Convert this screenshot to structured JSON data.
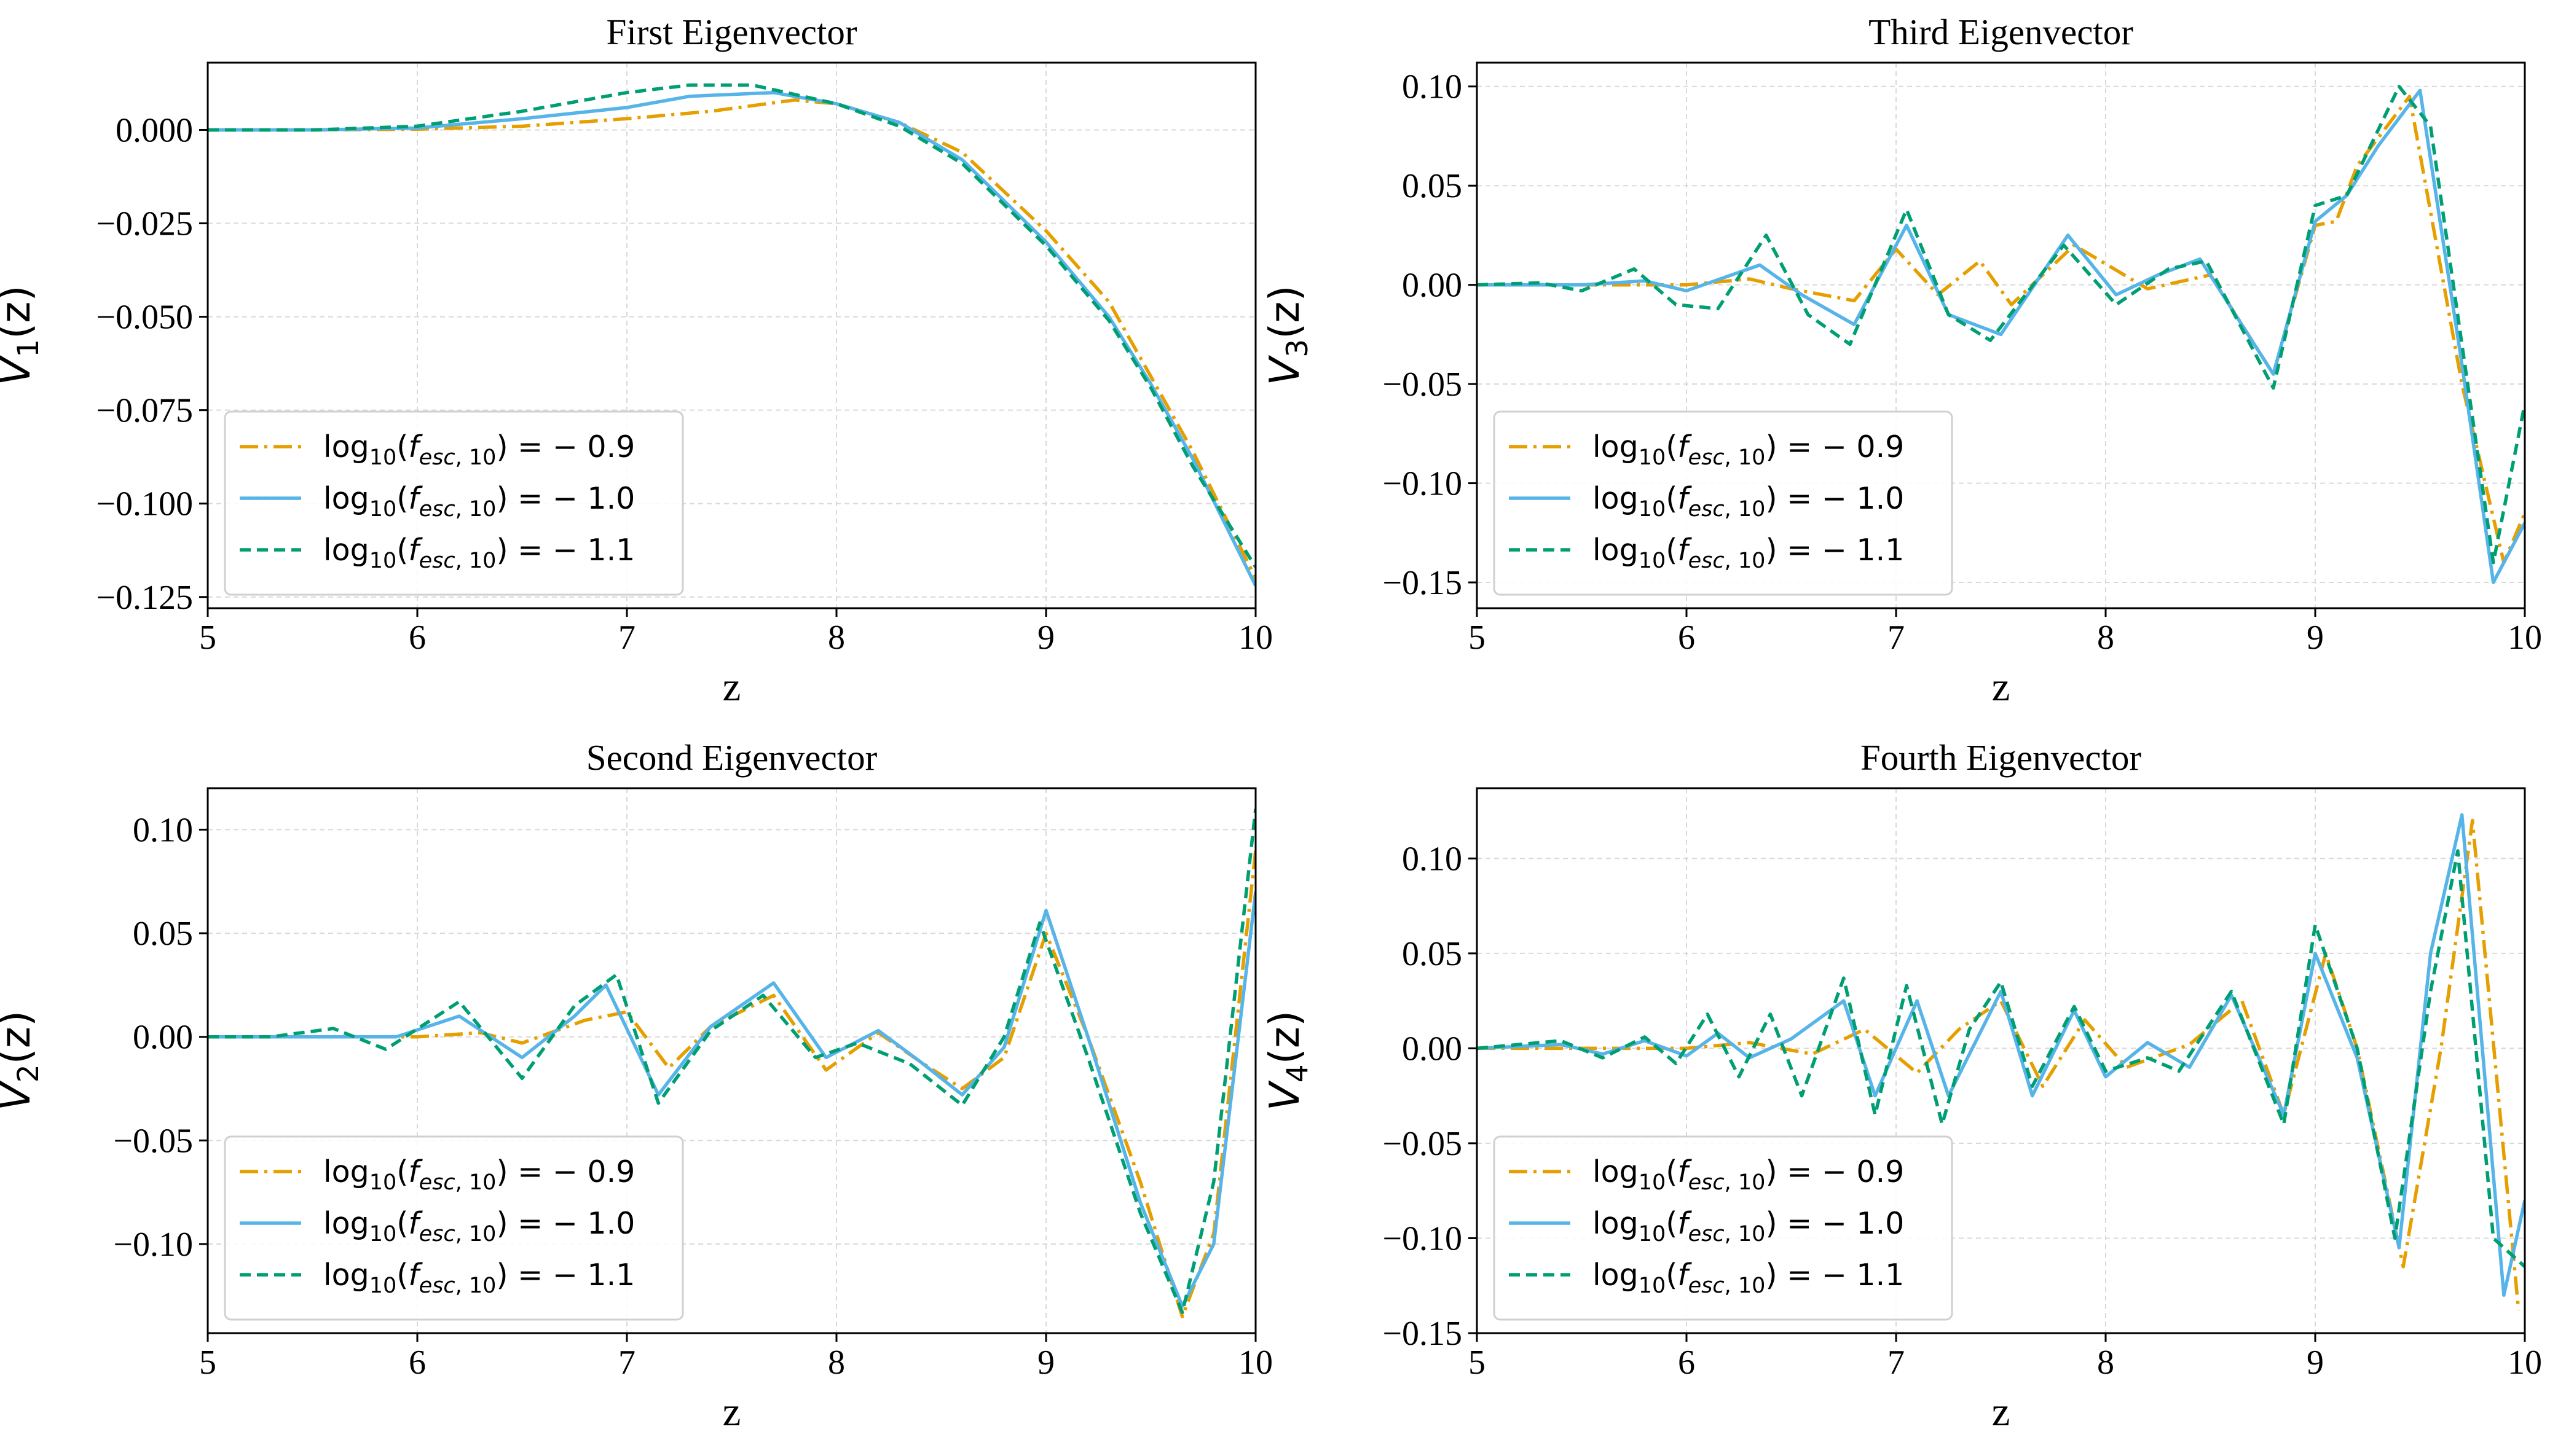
{
  "colors": {
    "s09": "#E69F00",
    "s10": "#56B4E9",
    "s11": "#009E73"
  },
  "legend": [
    {
      "key": "s09",
      "base": "log",
      "subscript": "10",
      "italic": "f",
      "italic_sub": "esc",
      "rest_sub": ", 10",
      "tail": ") = − 0.9",
      "style": "dashdot"
    },
    {
      "key": "s10",
      "base": "log",
      "subscript": "10",
      "italic": "f",
      "italic_sub": "esc",
      "rest_sub": ", 10",
      "tail": ") = − 1.0",
      "style": "solid"
    },
    {
      "key": "s11",
      "base": "log",
      "subscript": "10",
      "italic": "f",
      "italic_sub": "esc",
      "rest_sub": ", 10",
      "tail": ") = − 1.1",
      "style": "dashed"
    }
  ],
  "chart_data": [
    {
      "type": "line",
      "title": "First Eigenvector",
      "xlabel": "z",
      "ylabel": {
        "main": "V",
        "sub": "1",
        "tail": "(z)"
      },
      "xlim": [
        5,
        10
      ],
      "ylim": [
        -0.128,
        0.018
      ],
      "xticks": [
        "5",
        "6",
        "7",
        "8",
        "9",
        "10"
      ],
      "yticks": [
        0.0,
        -0.025,
        -0.05,
        -0.075,
        -0.1,
        -0.125
      ],
      "ytick_labels": [
        "0.000",
        "−0.025",
        "−0.050",
        "−0.075",
        "−0.100",
        "−0.125"
      ],
      "legend_loc": "lower left",
      "series": [
        {
          "name": "log10(f_esc,10) = -0.9",
          "key": "s09",
          "x": [
            5,
            5.5,
            6,
            6.5,
            7,
            7.4,
            7.8,
            8,
            8.3,
            8.6,
            9,
            9.3,
            9.5,
            9.7,
            10
          ],
          "y": [
            0,
            0,
            0.0002,
            0.001,
            0.003,
            0.005,
            0.008,
            0.007,
            0.002,
            -0.006,
            -0.027,
            -0.046,
            -0.066,
            -0.086,
            -0.12
          ]
        },
        {
          "name": "log10(f_esc,10) = -1.0",
          "key": "s10",
          "x": [
            5,
            5.5,
            6,
            6.5,
            7,
            7.3,
            7.7,
            8,
            8.3,
            8.6,
            9,
            9.3,
            9.5,
            9.7,
            10
          ],
          "y": [
            0,
            0,
            0.0005,
            0.003,
            0.006,
            0.009,
            0.01,
            0.007,
            0.002,
            -0.008,
            -0.03,
            -0.05,
            -0.068,
            -0.088,
            -0.122
          ]
        },
        {
          "name": "log10(f_esc,10) = -1.1",
          "key": "s11",
          "x": [
            5,
            5.5,
            6,
            6.5,
            7,
            7.3,
            7.6,
            8,
            8.3,
            8.6,
            9,
            9.3,
            9.5,
            9.7,
            10
          ],
          "y": [
            0,
            0,
            0.001,
            0.005,
            0.01,
            0.012,
            0.012,
            0.007,
            0.001,
            -0.009,
            -0.031,
            -0.051,
            -0.069,
            -0.09,
            -0.117
          ]
        }
      ]
    },
    {
      "type": "line",
      "title": "Second Eigenvector",
      "xlabel": "z",
      "ylabel": {
        "main": "V",
        "sub": "2",
        "tail": "(z)"
      },
      "xlim": [
        5,
        10
      ],
      "ylim": [
        -0.143,
        0.12
      ],
      "xticks": [
        "5",
        "6",
        "7",
        "8",
        "9",
        "10"
      ],
      "yticks": [
        0.1,
        0.05,
        0.0,
        -0.05,
        -0.1
      ],
      "ytick_labels": [
        "0.10",
        "0.05",
        "0.00",
        "−0.05",
        "−0.10"
      ],
      "legend_loc": "lower left",
      "series": [
        {
          "name": "log10(f_esc,10) = -0.9",
          "key": "s09",
          "x": [
            5,
            5.5,
            6,
            6.3,
            6.5,
            6.8,
            7,
            7.2,
            7.4,
            7.7,
            7.95,
            8.2,
            8.4,
            8.6,
            8.8,
            9,
            9.2,
            9.45,
            9.65,
            9.8,
            10
          ],
          "y": [
            0,
            0,
            0,
            0.002,
            -0.003,
            0.008,
            0.012,
            -0.015,
            0.005,
            0.02,
            -0.016,
            0.002,
            -0.012,
            -0.025,
            -0.01,
            0.05,
            0.0,
            -0.07,
            -0.135,
            -0.095,
            0.09
          ]
        },
        {
          "name": "log10(f_esc,10) = -1.0",
          "key": "s10",
          "x": [
            5,
            5.5,
            5.9,
            6.2,
            6.5,
            6.75,
            6.9,
            7.15,
            7.4,
            7.7,
            7.95,
            8.2,
            8.4,
            8.6,
            8.8,
            9,
            9.2,
            9.45,
            9.65,
            9.8,
            10
          ],
          "y": [
            0,
            0,
            0,
            0.01,
            -0.01,
            0.01,
            0.025,
            -0.028,
            0.005,
            0.026,
            -0.01,
            0.003,
            -0.012,
            -0.028,
            -0.005,
            0.061,
            0.0,
            -0.08,
            -0.13,
            -0.1,
            0.07
          ]
        },
        {
          "name": "log10(f_esc,10) = -1.1",
          "key": "s11",
          "x": [
            5,
            5.3,
            5.6,
            5.85,
            6.2,
            6.5,
            6.75,
            6.95,
            7.15,
            7.4,
            7.65,
            7.9,
            8.1,
            8.35,
            8.6,
            8.8,
            8.97,
            9.2,
            9.45,
            9.65,
            9.8,
            10
          ],
          "y": [
            0,
            0,
            0.004,
            -0.006,
            0.017,
            -0.02,
            0.015,
            0.03,
            -0.032,
            0.003,
            0.02,
            -0.01,
            -0.003,
            -0.013,
            -0.033,
            0.0,
            0.055,
            -0.01,
            -0.085,
            -0.133,
            -0.07,
            0.11
          ]
        }
      ]
    },
    {
      "type": "line",
      "title": "Third Eigenvector",
      "xlabel": "z",
      "ylabel": {
        "main": "V",
        "sub": "3",
        "tail": "(z)"
      },
      "xlim": [
        5,
        10
      ],
      "ylim": [
        -0.163,
        0.112
      ],
      "xticks": [
        "5",
        "6",
        "7",
        "8",
        "9",
        "10"
      ],
      "yticks": [
        0.1,
        0.05,
        0.0,
        -0.05,
        -0.1,
        -0.15
      ],
      "ytick_labels": [
        "0.10",
        "0.05",
        "0.00",
        "−0.05",
        "−0.10",
        "−0.15"
      ],
      "legend_loc": "lower left",
      "series": [
        {
          "name": "log10(f_esc,10) = -0.9",
          "key": "s09",
          "x": [
            5,
            5.5,
            6,
            6.3,
            6.5,
            6.8,
            7,
            7.2,
            7.4,
            7.55,
            7.85,
            8.2,
            8.5,
            8.8,
            9.0,
            9.1,
            9.2,
            9.45,
            9.7,
            9.9,
            10
          ],
          "y": [
            0,
            0,
            0,
            0.003,
            -0.002,
            -0.008,
            0.018,
            -0.005,
            0.012,
            -0.01,
            0.02,
            -0.002,
            0.005,
            -0.045,
            0.03,
            0.032,
            0.06,
            0.095,
            -0.05,
            -0.14,
            -0.115
          ]
        },
        {
          "name": "log10(f_esc,10) = -1.0",
          "key": "s10",
          "x": [
            5,
            5.5,
            5.8,
            6.0,
            6.35,
            6.55,
            6.8,
            7.05,
            7.25,
            7.5,
            7.82,
            8.05,
            8.25,
            8.45,
            8.8,
            9.0,
            9.15,
            9.3,
            9.5,
            9.7,
            9.85,
            10
          ],
          "y": [
            0,
            0,
            0.002,
            -0.003,
            0.01,
            -0.005,
            -0.02,
            0.03,
            -0.015,
            -0.025,
            0.025,
            -0.005,
            0.005,
            0.013,
            -0.045,
            0.032,
            0.045,
            0.07,
            0.098,
            -0.04,
            -0.15,
            -0.12
          ]
        },
        {
          "name": "log10(f_esc,10) = -1.1",
          "key": "s11",
          "x": [
            5,
            5.3,
            5.5,
            5.75,
            5.95,
            6.15,
            6.38,
            6.58,
            6.78,
            7.05,
            7.25,
            7.45,
            7.8,
            8.05,
            8.3,
            8.48,
            8.8,
            9.0,
            9.15,
            9.4,
            9.55,
            9.85,
            10
          ],
          "y": [
            0,
            0.001,
            -0.003,
            0.008,
            -0.01,
            -0.012,
            0.025,
            -0.015,
            -0.03,
            0.038,
            -0.015,
            -0.028,
            0.02,
            -0.01,
            0.008,
            0.012,
            -0.052,
            0.04,
            0.045,
            0.1,
            0.08,
            -0.14,
            -0.06
          ]
        }
      ]
    },
    {
      "type": "line",
      "title": "Fourth Eigenvector",
      "xlabel": "z",
      "ylabel": {
        "main": "V",
        "sub": "4",
        "tail": "(z)"
      },
      "xlim": [
        5,
        10
      ],
      "ylim": [
        -0.15,
        0.137
      ],
      "xticks": [
        "5",
        "6",
        "7",
        "8",
        "9",
        "10"
      ],
      "yticks": [
        0.1,
        0.05,
        0.0,
        -0.05,
        -0.1,
        -0.15
      ],
      "ytick_labels": [
        "0.10",
        "0.05",
        "0.00",
        "−0.05",
        "−0.10",
        "−0.15"
      ],
      "legend_loc": "lower left",
      "series": [
        {
          "name": "log10(f_esc,10) = -0.9",
          "key": "s09",
          "x": [
            5,
            5.5,
            6,
            6.3,
            6.6,
            6.85,
            7.1,
            7.3,
            7.5,
            7.7,
            7.9,
            8.1,
            8.4,
            8.65,
            8.85,
            9.05,
            9.2,
            9.42,
            9.6,
            9.75,
            9.97
          ],
          "y": [
            0,
            0,
            0,
            0.003,
            -0.003,
            0.01,
            -0.013,
            0.01,
            0.025,
            -0.02,
            0.015,
            -0.01,
            0.002,
            0.025,
            -0.035,
            0.05,
            0.0,
            -0.115,
            0.0,
            0.12,
            -0.138
          ]
        },
        {
          "name": "log10(f_esc,10) = -1.0",
          "key": "s10",
          "x": [
            5,
            5.4,
            5.6,
            5.8,
            6.0,
            6.15,
            6.3,
            6.5,
            6.75,
            6.9,
            7.1,
            7.25,
            7.5,
            7.65,
            7.85,
            8.0,
            8.2,
            8.4,
            8.6,
            8.85,
            9.0,
            9.2,
            9.4,
            9.55,
            9.7,
            9.9,
            10
          ],
          "y": [
            0,
            0.002,
            -0.003,
            0.004,
            -0.004,
            0.008,
            -0.005,
            0.005,
            0.025,
            -0.025,
            0.025,
            -0.025,
            0.03,
            -0.025,
            0.02,
            -0.015,
            0.003,
            -0.01,
            0.028,
            -0.035,
            0.05,
            -0.005,
            -0.105,
            0.05,
            0.123,
            -0.13,
            -0.08
          ]
        },
        {
          "name": "log10(f_esc,10) = -1.1",
          "key": "s11",
          "x": [
            5,
            5.4,
            5.6,
            5.8,
            5.95,
            6.1,
            6.25,
            6.4,
            6.55,
            6.75,
            6.9,
            7.05,
            7.22,
            7.35,
            7.5,
            7.65,
            7.85,
            8.0,
            8.2,
            8.35,
            8.6,
            8.85,
            9.0,
            9.2,
            9.38,
            9.55,
            9.68,
            9.85,
            10
          ],
          "y": [
            0,
            0.004,
            -0.005,
            0.006,
            -0.008,
            0.018,
            -0.015,
            0.018,
            -0.025,
            0.037,
            -0.035,
            0.033,
            -0.04,
            0.01,
            0.035,
            -0.02,
            0.022,
            -0.012,
            -0.005,
            -0.012,
            0.03,
            -0.04,
            0.065,
            0.0,
            -0.1,
            0.03,
            0.104,
            -0.1,
            -0.115
          ]
        }
      ]
    }
  ]
}
